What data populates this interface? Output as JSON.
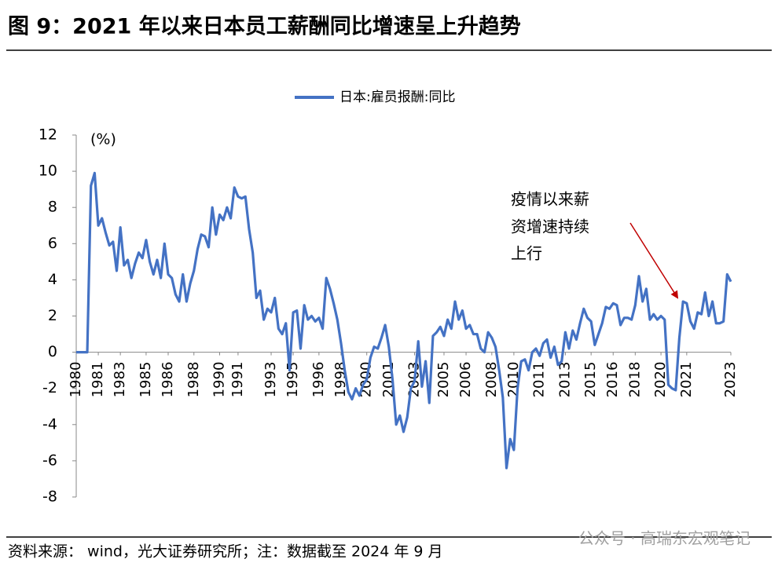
{
  "chart_data": {
    "type": "line",
    "title": "图 9：2021 年以来日本员工薪酬同比增速呈上升趋势",
    "y_unit": "(%)",
    "annotation": [
      "疫情以来薪",
      "资增速持续",
      "上行"
    ],
    "source": "资料来源：  wind，光大证券研究所；注：数据截至 2024 年 9 月",
    "watermark": "公众号 · 高瑞东宏观笔记",
    "ylim": [
      -8,
      12
    ],
    "yticks": [
      -8,
      -6,
      -4,
      -2,
      0,
      2,
      4,
      6,
      8,
      10,
      12
    ],
    "legend": "top",
    "categories": [
      "1980",
      null,
      null,
      null,
      null,
      null,
      "1981",
      null,
      null,
      null,
      null,
      null,
      "1983",
      null,
      null,
      null,
      null,
      null,
      null,
      "1985",
      null,
      null,
      null,
      null,
      null,
      "1986",
      null,
      null,
      null,
      null,
      null,
      null,
      "1988",
      null,
      null,
      null,
      null,
      null,
      null,
      "1990",
      null,
      null,
      null,
      null,
      "1991",
      null,
      null,
      null,
      null,
      null,
      null,
      null,
      null,
      "1993",
      null,
      null,
      null,
      null,
      null,
      "1995",
      null,
      null,
      null,
      null,
      null,
      null,
      "1996",
      null,
      null,
      null,
      null,
      null,
      "1998",
      null,
      null,
      null,
      null,
      null,
      null,
      "2000",
      null,
      null,
      null,
      null,
      null,
      "2001",
      null,
      null,
      null,
      null,
      null,
      null,
      "2003",
      null,
      null,
      null,
      null,
      null,
      null,
      null,
      "2005",
      null,
      null,
      null,
      null,
      null,
      "2006",
      null,
      null,
      null,
      null,
      null,
      null,
      "2008",
      null,
      null,
      null,
      null,
      null,
      "2010",
      null,
      null,
      null,
      null,
      null,
      null,
      "2011",
      null,
      null,
      null,
      null,
      null,
      null,
      "2013",
      null,
      null,
      null,
      null,
      null,
      null,
      "2015",
      null,
      null,
      null,
      null,
      null,
      "2016",
      null,
      null,
      null,
      null,
      null,
      "2018",
      null,
      null,
      null,
      null,
      null,
      null,
      "2020",
      null,
      null,
      null,
      null,
      null,
      null,
      "2021",
      null,
      null,
      null,
      null,
      null,
      null,
      null,
      null,
      null,
      null,
      null,
      "2023"
    ],
    "series": [
      {
        "name": "日本:雇员报酬:同比",
        "color": "#4472c4",
        "values": [
          0,
          0,
          0,
          0,
          9.2,
          9.9,
          7.0,
          7.4,
          6.6,
          5.9,
          6.1,
          4.5,
          6.9,
          4.8,
          5.1,
          4.1,
          4.9,
          5.5,
          5.2,
          6.2,
          5.0,
          4.3,
          5.1,
          4.1,
          6.0,
          4.3,
          4.1,
          3.2,
          2.8,
          4.3,
          2.8,
          3.8,
          4.5,
          5.7,
          6.5,
          6.4,
          5.8,
          8.0,
          6.5,
          7.6,
          7.3,
          8.0,
          7.4,
          9.1,
          8.6,
          8.5,
          8.6,
          6.8,
          5.5,
          3.0,
          3.4,
          1.8,
          2.4,
          2.2,
          3.0,
          1.3,
          1.0,
          1.6,
          -1.0,
          2.2,
          2.3,
          0.2,
          2.6,
          1.8,
          2.0,
          1.7,
          1.9,
          1.3,
          4.1,
          3.5,
          2.7,
          1.8,
          0.5,
          -1.0,
          -2.2,
          -2.6,
          -2.0,
          -2.4,
          -1.8,
          -1.5,
          -0.3,
          0.3,
          0.2,
          0.8,
          1.5,
          0.3,
          -1.5,
          -4.0,
          -3.5,
          -4.4,
          -3.6,
          -2.0,
          -1.6,
          0.6,
          -1.9,
          -0.5,
          -2.8,
          0.9,
          1.1,
          1.4,
          0.9,
          1.8,
          1.3,
          2.8,
          1.8,
          2.3,
          1.3,
          1.5,
          1.0,
          1.0,
          0.2,
          0.0,
          1.1,
          0.8,
          0.3,
          -1.0,
          -2.5,
          -6.4,
          -4.8,
          -5.4,
          -2.0,
          -0.5,
          -0.4,
          -1.0,
          0.0,
          0.2,
          -0.2,
          0.5,
          0.7,
          -0.3,
          0.3,
          -0.7,
          -0.5,
          1.1,
          0.2,
          1.2,
          0.7,
          1.6,
          2.4,
          1.9,
          1.7,
          0.4,
          1.0,
          1.6,
          2.5,
          2.4,
          2.7,
          2.6,
          1.5,
          1.9,
          1.9,
          1.8,
          2.6,
          4.2,
          2.8,
          3.5,
          1.8,
          2.1,
          1.8,
          2.0,
          1.8,
          -1.8,
          -2.0,
          -2.1,
          0.8,
          2.8,
          2.7,
          1.7,
          1.3,
          2.2,
          2.1,
          3.3,
          2.0,
          2.8,
          1.6,
          1.6,
          1.7,
          4.3,
          3.9
        ]
      }
    ]
  }
}
